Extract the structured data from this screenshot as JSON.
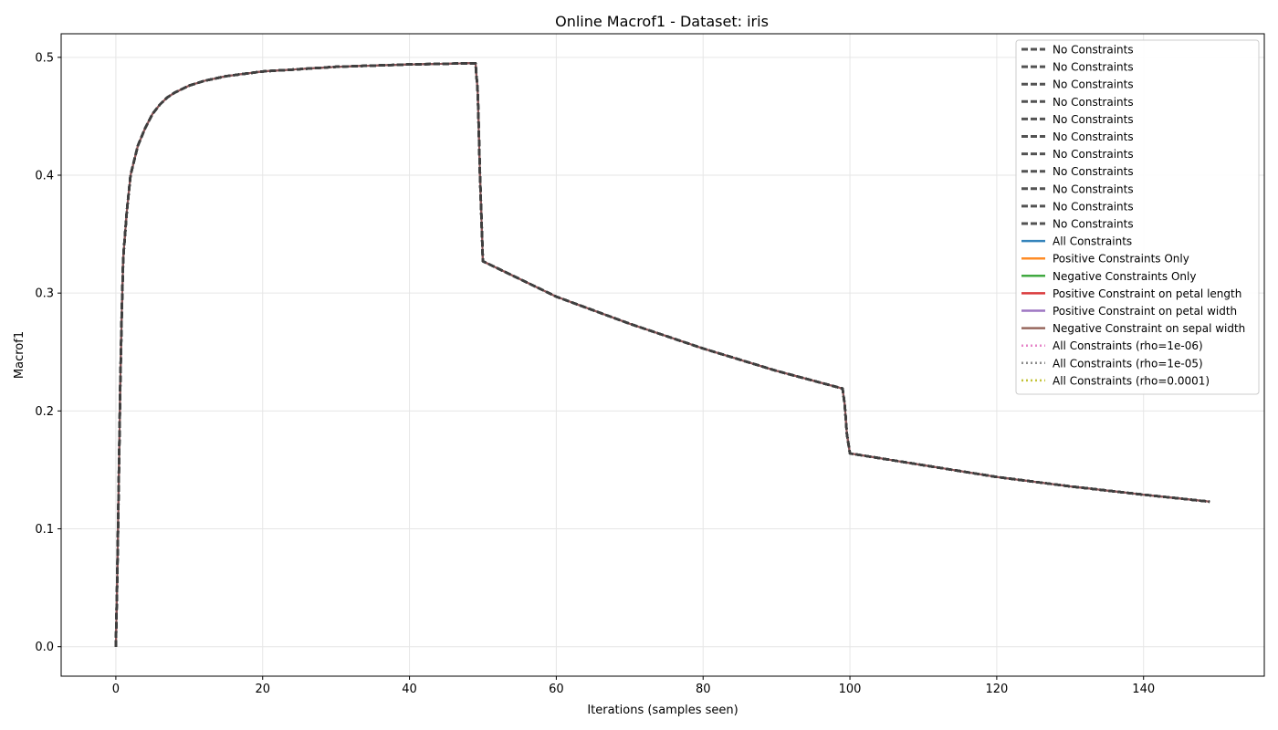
{
  "chart_data": {
    "type": "line",
    "title": "Online Macrof1 - Dataset: iris",
    "xlabel": "Iterations (samples seen)",
    "ylabel": "Macrof1",
    "xlim": [
      -7.45,
      156.45
    ],
    "ylim": [
      -0.025,
      0.52
    ],
    "xticks": [
      0,
      20,
      40,
      60,
      80,
      100,
      120,
      140
    ],
    "yticks": [
      0.0,
      0.1,
      0.2,
      0.3,
      0.4,
      0.5
    ],
    "ytick_labels": [
      "0.0",
      "0.1",
      "0.2",
      "0.3",
      "0.4",
      "0.5"
    ],
    "grid": true,
    "legend_position": "top-right",
    "x": [
      0,
      0.1,
      0.2,
      0.3,
      0.4,
      0.5,
      0.6,
      0.8,
      1,
      1.5,
      2,
      3,
      4,
      5,
      6,
      7,
      8,
      10,
      12,
      15,
      20,
      25,
      30,
      35,
      40,
      45,
      48,
      49,
      49.3,
      49.6,
      50,
      55,
      60,
      70,
      80,
      90,
      99,
      99.3,
      99.6,
      100,
      110,
      120,
      130,
      140,
      149
    ],
    "values": [
      0.0,
      0.03,
      0.06,
      0.1,
      0.14,
      0.18,
      0.22,
      0.28,
      0.33,
      0.37,
      0.4,
      0.425,
      0.44,
      0.452,
      0.46,
      0.466,
      0.47,
      0.476,
      0.48,
      0.484,
      0.488,
      0.49,
      0.492,
      0.493,
      0.494,
      0.4945,
      0.495,
      0.495,
      0.47,
      0.4,
      0.327,
      0.312,
      0.297,
      0.274,
      0.253,
      0.234,
      0.219,
      0.205,
      0.18,
      0.164,
      0.154,
      0.144,
      0.136,
      0.129,
      0.123
    ],
    "series": [
      {
        "name": "No Constraints",
        "color": "#404040",
        "style": "dashed"
      },
      {
        "name": "No Constraints",
        "color": "#404040",
        "style": "dashed"
      },
      {
        "name": "No Constraints",
        "color": "#404040",
        "style": "dashed"
      },
      {
        "name": "No Constraints",
        "color": "#404040",
        "style": "dashed"
      },
      {
        "name": "No Constraints",
        "color": "#404040",
        "style": "dashed"
      },
      {
        "name": "No Constraints",
        "color": "#404040",
        "style": "dashed"
      },
      {
        "name": "No Constraints",
        "color": "#404040",
        "style": "dashed"
      },
      {
        "name": "No Constraints",
        "color": "#404040",
        "style": "dashed"
      },
      {
        "name": "No Constraints",
        "color": "#404040",
        "style": "dashed"
      },
      {
        "name": "No Constraints",
        "color": "#404040",
        "style": "dashed"
      },
      {
        "name": "No Constraints",
        "color": "#404040",
        "style": "dashed"
      },
      {
        "name": "All Constraints",
        "color": "#1f77b4",
        "style": "solid"
      },
      {
        "name": "Positive Constraints Only",
        "color": "#ff7f0e",
        "style": "solid"
      },
      {
        "name": "Negative Constraints Only",
        "color": "#2ca02c",
        "style": "solid"
      },
      {
        "name": "Positive Constraint on petal length",
        "color": "#d62728",
        "style": "solid"
      },
      {
        "name": "Positive Constraint on petal width",
        "color": "#9467bd",
        "style": "solid"
      },
      {
        "name": "Negative Constraint on sepal width",
        "color": "#8c564b",
        "style": "solid"
      },
      {
        "name": "All Constraints (rho=1e-06)",
        "color": "#e377c2",
        "style": "dotted"
      },
      {
        "name": "All Constraints (rho=1e-05)",
        "color": "#7f7f7f",
        "style": "dotted"
      },
      {
        "name": "All Constraints (rho=0.0001)",
        "color": "#bcbd22",
        "style": "dotted"
      }
    ]
  }
}
